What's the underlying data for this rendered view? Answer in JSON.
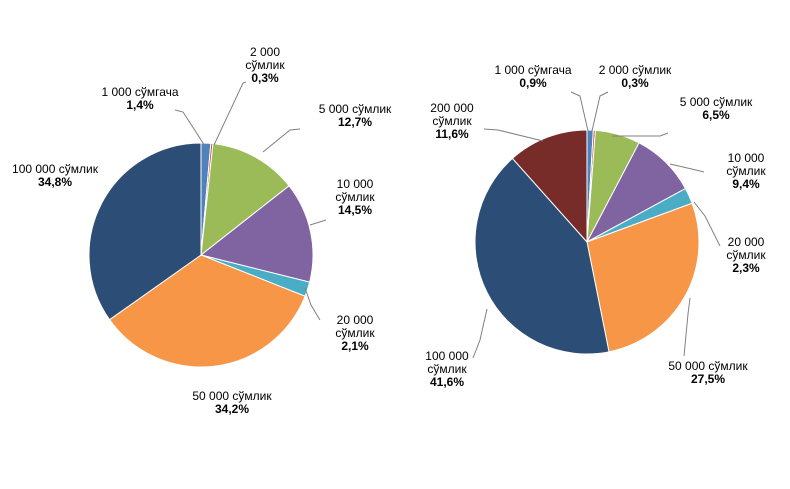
{
  "chart_data": [
    {
      "type": "pie",
      "slices": [
        {
          "label_lines": [
            "1 000 сўмгача"
          ],
          "value_text": "1,4%",
          "value": 1.4,
          "color": "#4F81BD"
        },
        {
          "label_lines": [
            "2 000",
            "сўмлик"
          ],
          "value_text": "0,3%",
          "value": 0.3,
          "color": "#C0504D"
        },
        {
          "label_lines": [
            "5 000 сўмлик"
          ],
          "value_text": "12,7%",
          "value": 12.7,
          "color": "#9BBB59"
        },
        {
          "label_lines": [
            "10 000",
            "сўмлик"
          ],
          "value_text": "14,5%",
          "value": 14.5,
          "color": "#8064A2"
        },
        {
          "label_lines": [
            "20 000",
            "сўмлик"
          ],
          "value_text": "2,1%",
          "value": 2.1,
          "color": "#4BACC6"
        },
        {
          "label_lines": [
            "50 000 сўмлик"
          ],
          "value_text": "34,2%",
          "value": 34.2,
          "color": "#F79646"
        },
        {
          "label_lines": [
            "100 000 сўмлик"
          ],
          "value_text": "34,8%",
          "value": 34.8,
          "color": "#2C4D75"
        }
      ]
    },
    {
      "type": "pie",
      "slices": [
        {
          "label_lines": [
            "1 000 сўмгача"
          ],
          "value_text": "0,9%",
          "value": 0.9,
          "color": "#4F81BD"
        },
        {
          "label_lines": [
            "2 000 сўмлик"
          ],
          "value_text": "0,3%",
          "value": 0.3,
          "color": "#C0504D"
        },
        {
          "label_lines": [
            "5 000 сўмлик"
          ],
          "value_text": "6,5%",
          "value": 6.5,
          "color": "#9BBB59"
        },
        {
          "label_lines": [
            "10 000",
            "сўмлик"
          ],
          "value_text": "9,4%",
          "value": 9.4,
          "color": "#8064A2"
        },
        {
          "label_lines": [
            "20 000",
            "сўмлик"
          ],
          "value_text": "2,3%",
          "value": 2.3,
          "color": "#4BACC6"
        },
        {
          "label_lines": [
            "50 000 сўмлик"
          ],
          "value_text": "27,5%",
          "value": 27.5,
          "color": "#F79646"
        },
        {
          "label_lines": [
            "100 000",
            "сўмлик"
          ],
          "value_text": "41,6%",
          "value": 41.6,
          "color": "#2C4D75"
        },
        {
          "label_lines": [
            "200 000",
            "сўмлик"
          ],
          "value_text": "11,6%",
          "value": 11.6,
          "color": "#772C2A"
        }
      ]
    }
  ]
}
